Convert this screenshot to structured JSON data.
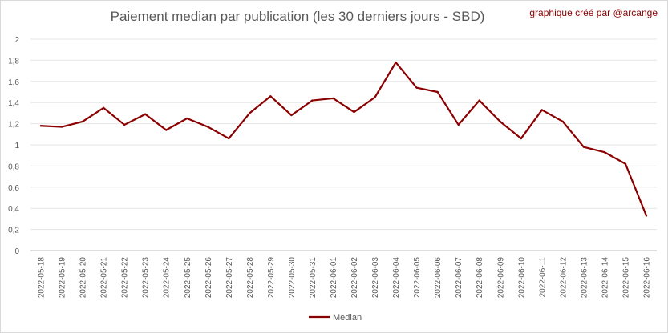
{
  "chart_data": {
    "type": "line",
    "title": "Paiement median par publication (les 30 derniers jours - SBD)",
    "credit": "graphique créé par @arcange",
    "xlabel": "",
    "ylabel": "",
    "ylim": [
      0,
      2
    ],
    "y_ticks": [
      "0",
      "0,2",
      "0,4",
      "0,6",
      "0,8",
      "1",
      "1,2",
      "1,4",
      "1,6",
      "1,8",
      "2"
    ],
    "grid": true,
    "legend_position": "bottom",
    "line_color": "#8b0000",
    "x": [
      "2022-05-18",
      "2022-05-19",
      "2022-05-20",
      "2022-05-21",
      "2022-05-22",
      "2022-05-23",
      "2022-05-24",
      "2022-05-25",
      "2022-05-26",
      "2022-05-27",
      "2022-05-28",
      "2022-05-29",
      "2022-05-30",
      "2022-05-31",
      "2022-06-01",
      "2022-06-02",
      "2022-06-03",
      "2022-06-04",
      "2022-06-05",
      "2022-06-06",
      "2022-06-07",
      "2022-06-08",
      "2022-06-09",
      "2022-06-10",
      "2022-06-11",
      "2022-06-12",
      "2022-06-13",
      "2022-06-14",
      "2022-06-15",
      "2022-06-16"
    ],
    "series": [
      {
        "name": "Median",
        "values": [
          1.18,
          1.17,
          1.22,
          1.35,
          1.19,
          1.29,
          1.14,
          1.25,
          1.17,
          1.06,
          1.3,
          1.46,
          1.28,
          1.42,
          1.44,
          1.31,
          1.45,
          1.78,
          1.54,
          1.5,
          1.19,
          1.42,
          1.22,
          1.06,
          1.33,
          1.22,
          0.98,
          0.93,
          0.82,
          0.33
        ]
      }
    ]
  }
}
